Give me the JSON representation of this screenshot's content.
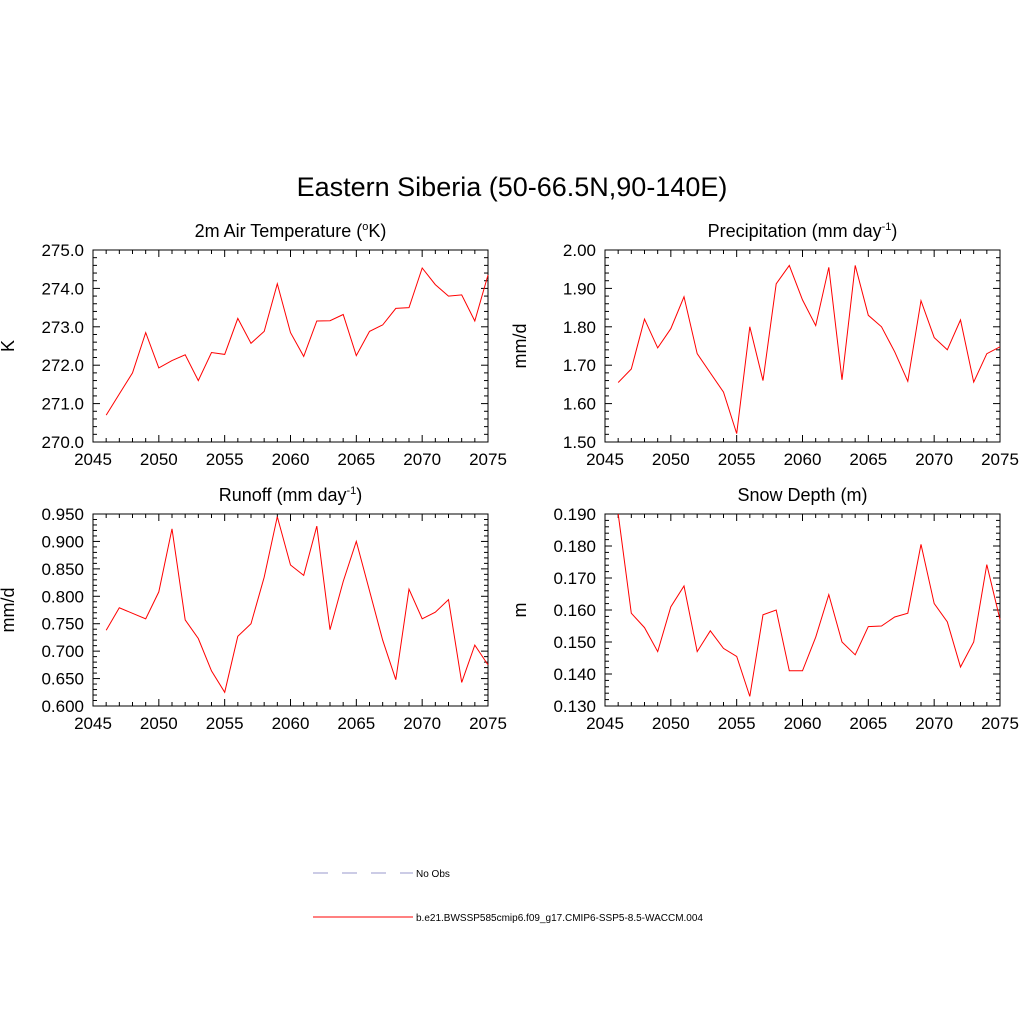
{
  "figure_title": "Eastern Siberia (50-66.5N,90-140E)",
  "legend": [
    {
      "label": "No Obs",
      "style": "dashed",
      "color": "#9999cc"
    },
    {
      "label": "b.e21.BWSSP585cmip6.f09_g17.CMIP6-SSP5-8.5-WACCM.004",
      "style": "solid",
      "color": "#ff0000"
    }
  ],
  "chart_data": [
    {
      "type": "line",
      "title": "2m Air Temperature (",
      "title_sup": "o",
      "title_after": "K)",
      "ylabel": "K",
      "xlim": [
        2045,
        2075
      ],
      "ylim": [
        270.0,
        275.0
      ],
      "xticks": [
        2045,
        2050,
        2055,
        2060,
        2065,
        2070,
        2075
      ],
      "yticks": [
        "270.0",
        "271.0",
        "272.0",
        "273.0",
        "274.0",
        "275.0"
      ],
      "x": [
        2046,
        2047,
        2048,
        2049,
        2050,
        2051,
        2052,
        2053,
        2054,
        2055,
        2056,
        2057,
        2058,
        2059,
        2060,
        2061,
        2062,
        2063,
        2064,
        2065,
        2066,
        2067,
        2068,
        2069,
        2070,
        2071,
        2072,
        2073,
        2074,
        2075
      ],
      "series": [
        {
          "color": "#ff0000",
          "values": [
            270.7,
            271.25,
            271.8,
            272.85,
            271.93,
            272.12,
            272.27,
            271.6,
            272.33,
            272.28,
            273.22,
            272.57,
            272.88,
            274.12,
            272.85,
            272.23,
            273.15,
            273.16,
            273.32,
            272.25,
            272.88,
            273.05,
            273.48,
            273.5,
            274.53,
            274.1,
            273.8,
            273.83,
            273.15,
            274.35
          ]
        }
      ]
    },
    {
      "type": "line",
      "title": "Precipitation (mm day",
      "title_sup": "-1",
      "title_after": ")",
      "ylabel": "mm/d",
      "xlim": [
        2045,
        2075
      ],
      "ylim": [
        1.5,
        2.0
      ],
      "xticks": [
        2045,
        2050,
        2055,
        2060,
        2065,
        2070,
        2075
      ],
      "yticks": [
        "1.50",
        "1.60",
        "1.70",
        "1.80",
        "1.90",
        "2.00"
      ],
      "x": [
        2046,
        2047,
        2048,
        2049,
        2050,
        2051,
        2052,
        2053,
        2054,
        2055,
        2056,
        2057,
        2058,
        2059,
        2060,
        2061,
        2062,
        2063,
        2064,
        2065,
        2066,
        2067,
        2068,
        2069,
        2070,
        2071,
        2072,
        2073,
        2074,
        2075
      ],
      "series": [
        {
          "color": "#ff0000",
          "values": [
            1.655,
            1.69,
            1.82,
            1.745,
            1.795,
            1.878,
            1.73,
            1.68,
            1.63,
            1.522,
            1.8,
            1.66,
            1.912,
            1.96,
            1.87,
            1.803,
            1.955,
            1.662,
            1.96,
            1.83,
            1.8,
            1.735,
            1.658,
            1.868,
            1.772,
            1.74,
            1.818,
            1.656,
            1.73,
            1.748
          ]
        }
      ]
    },
    {
      "type": "line",
      "title": "Runoff (mm day",
      "title_sup": "-1",
      "title_after": ")",
      "ylabel": "mm/d",
      "xlim": [
        2045,
        2075
      ],
      "ylim": [
        0.6,
        0.95
      ],
      "xticks": [
        2045,
        2050,
        2055,
        2060,
        2065,
        2070,
        2075
      ],
      "yticks": [
        "0.600",
        "0.650",
        "0.700",
        "0.750",
        "0.800",
        "0.850",
        "0.900",
        "0.950"
      ],
      "x": [
        2046,
        2047,
        2048,
        2049,
        2050,
        2051,
        2052,
        2053,
        2054,
        2055,
        2056,
        2057,
        2058,
        2059,
        2060,
        2061,
        2062,
        2063,
        2064,
        2065,
        2066,
        2067,
        2068,
        2069,
        2070,
        2071,
        2072,
        2073,
        2074,
        2075
      ],
      "series": [
        {
          "color": "#ff0000",
          "values": [
            0.738,
            0.779,
            0.769,
            0.759,
            0.808,
            0.923,
            0.757,
            0.723,
            0.664,
            0.625,
            0.727,
            0.75,
            0.835,
            0.945,
            0.857,
            0.838,
            0.928,
            0.739,
            0.827,
            0.9,
            0.81,
            0.72,
            0.648,
            0.813,
            0.759,
            0.771,
            0.794,
            0.643,
            0.711,
            0.675
          ]
        }
      ]
    },
    {
      "type": "line",
      "title": "Snow Depth (m)",
      "title_sup": "",
      "title_after": "",
      "ylabel": "m",
      "xlim": [
        2045,
        2075
      ],
      "ylim": [
        0.13,
        0.19
      ],
      "xticks": [
        2045,
        2050,
        2055,
        2060,
        2065,
        2070,
        2075
      ],
      "yticks": [
        "0.130",
        "0.140",
        "0.150",
        "0.160",
        "0.170",
        "0.180",
        "0.190"
      ],
      "x": [
        2046,
        2047,
        2048,
        2049,
        2050,
        2051,
        2052,
        2053,
        2054,
        2055,
        2056,
        2057,
        2058,
        2059,
        2060,
        2061,
        2062,
        2063,
        2064,
        2065,
        2066,
        2067,
        2068,
        2069,
        2070,
        2071,
        2072,
        2073,
        2074,
        2075
      ],
      "series": [
        {
          "color": "#ff0000",
          "values": [
            0.19,
            0.159,
            0.1545,
            0.147,
            0.161,
            0.1675,
            0.147,
            0.1535,
            0.148,
            0.1455,
            0.133,
            0.1585,
            0.16,
            0.141,
            0.141,
            0.1515,
            0.1648,
            0.15,
            0.146,
            0.1548,
            0.155,
            0.1578,
            0.159,
            0.1805,
            0.162,
            0.1563,
            0.1422,
            0.15,
            0.1742,
            0.157
          ]
        }
      ]
    }
  ]
}
